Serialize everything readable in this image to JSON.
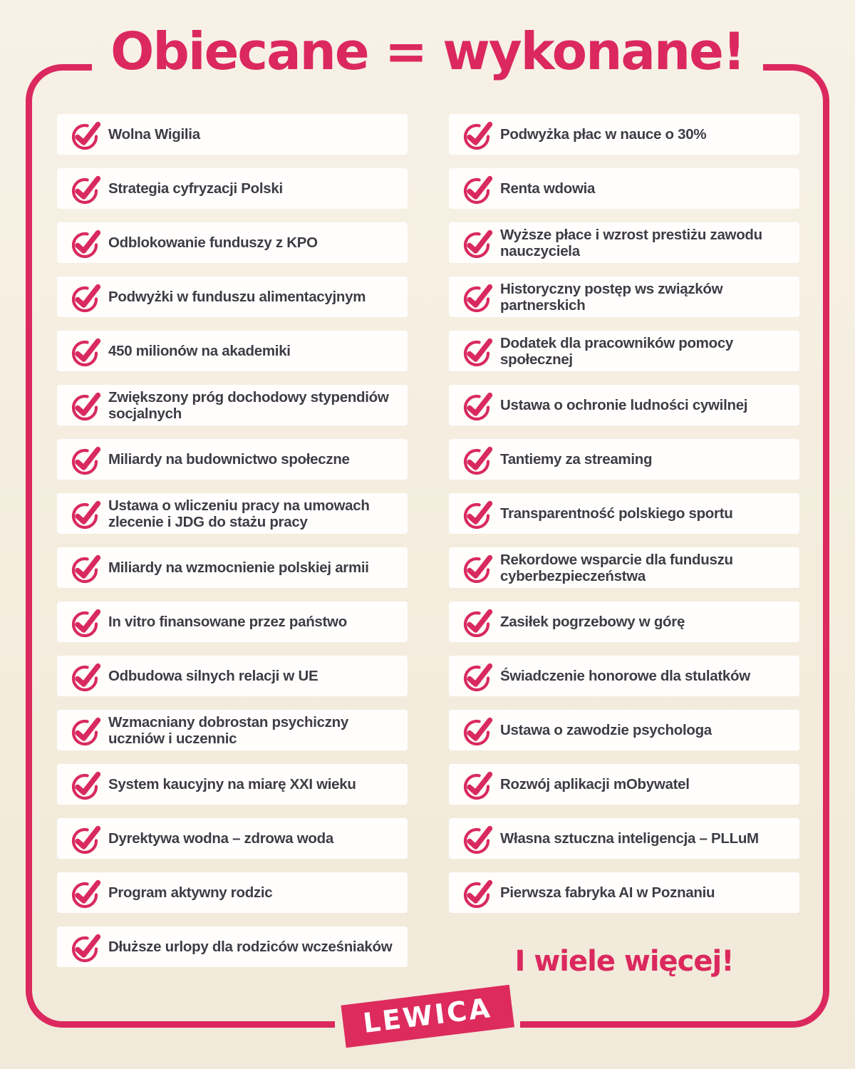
{
  "title": "Obiecane = wykonane!",
  "columns": {
    "left": [
      "Wolna Wigilia",
      "Strategia cyfryzacji Polski",
      "Odblokowanie funduszy z KPO",
      "Podwyżki w funduszu alimentacyjnym",
      "450 milionów na akademiki",
      "Zwiększony próg dochodowy stypendiów\nsocjalnych",
      "Miliardy na budownictwo społeczne",
      "Ustawa o wliczeniu pracy na umowach\nzlecenie i JDG do stażu pracy",
      "Miliardy na wzmocnienie polskiej armii",
      "In vitro finansowane przez państwo",
      "Odbudowa silnych relacji w UE",
      "Wzmacniany dobrostan psychiczny\nuczniów i uczennic",
      "System kaucyjny na miarę XXI wieku",
      "Dyrektywa wodna – zdrowa woda",
      "Program aktywny rodzic",
      "Dłuższe urlopy dla rodziców wcześniaków"
    ],
    "right": [
      "Podwyżka płac w nauce o 30%",
      "Renta wdowia",
      "Wyższe płace i wzrost prestiżu zawodu\nnauczyciela",
      "Historyczny postęp ws związków\npartnerskich",
      "Dodatek dla pracowników pomocy\nspołecznej",
      "Ustawa o ochronie ludności cywilnej",
      "Tantiemy za streaming",
      "Transparentność polskiego sportu",
      "Rekordowe wsparcie dla funduszu\ncyberbezpieczeństwa",
      "Zasiłek pogrzebowy w górę",
      "Świadczenie honorowe dla stulatków",
      "Ustawa o zawodzie psychologa",
      "Rozwój aplikacji mObywatel",
      "Własna sztuczna inteligencja – PLLuM",
      "Pierwsza fabryka AI w Poznaniu"
    ]
  },
  "footer": {
    "more_label": "I wiele więcej!",
    "logo_label": "LEWICA"
  },
  "icons": {
    "item_icon": "circled-checkmark"
  },
  "colors": {
    "accent_pink": "#db285e",
    "background_cream": "#f4edde",
    "card_white": "#fffefd",
    "text_dark": "#3f3c44"
  }
}
